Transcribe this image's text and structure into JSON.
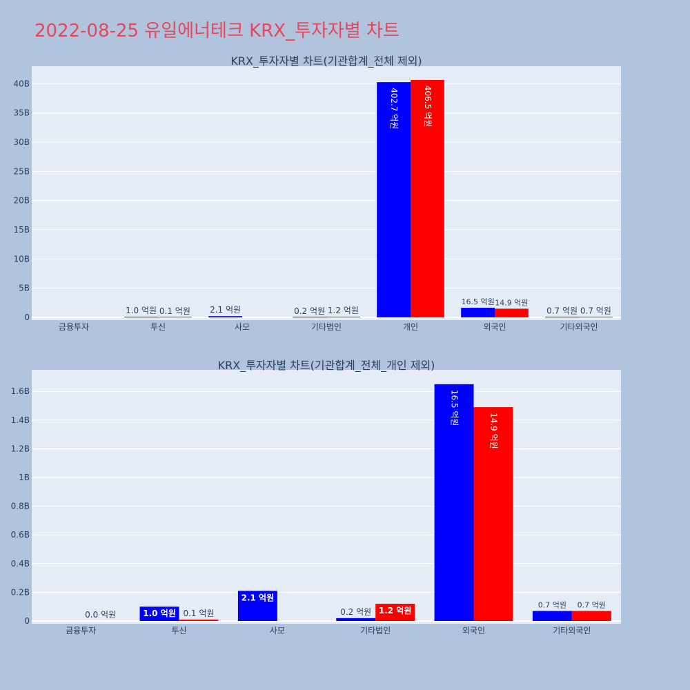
{
  "page": {
    "title": "2022-08-25 유일에너테크 KRX_투자자별 차트"
  },
  "colors": {
    "background": "#b0c4de",
    "plot_background": "#e5ecf6",
    "title": "#e8475b",
    "series_buy": "#0000ff",
    "series_sell": "#ff0000"
  },
  "chart_data": [
    {
      "type": "bar",
      "title": "KRX_투자자별 차트(기관합계_전체 제외)",
      "categories": [
        "금융투자",
        "투신",
        "사모",
        "기타법인",
        "개인",
        "외국인",
        "기타외국인"
      ],
      "y_ticks": [
        {
          "value": 0,
          "label": "0"
        },
        {
          "value": 5000000000,
          "label": "5B"
        },
        {
          "value": 10000000000,
          "label": "10B"
        },
        {
          "value": 15000000000,
          "label": "15B"
        },
        {
          "value": 20000000000,
          "label": "20B"
        },
        {
          "value": 25000000000,
          "label": "25B"
        },
        {
          "value": 30000000000,
          "label": "30B"
        },
        {
          "value": 35000000000,
          "label": "35B"
        },
        {
          "value": 40000000000,
          "label": "40B"
        }
      ],
      "ylim": [
        0,
        43000000000
      ],
      "grid": true,
      "series": [
        {
          "color": "#0000ff",
          "values": [
            null,
            100000000,
            210000000,
            20000000,
            40270000000,
            1650000000,
            70000000
          ],
          "labels": [
            "",
            "1.0 억원",
            "2.1 억원",
            "0.2 억원",
            "402.7 억원",
            "16.5 억원",
            "0.7 억원"
          ]
        },
        {
          "color": "#ff0000",
          "values": [
            null,
            10000000,
            null,
            120000000,
            40650000000,
            1490000000,
            70000000
          ],
          "labels": [
            "",
            "0.1 억원",
            "",
            "1.2 억원",
            "406.5 억원",
            "14.9 억원",
            "0.7 억원"
          ]
        }
      ]
    },
    {
      "type": "bar",
      "title": "KRX_투자자별 차트(기관합계_전체_개인 제외)",
      "categories": [
        "금융투자",
        "투신",
        "사모",
        "기타법인",
        "외국인",
        "기타외국인"
      ],
      "y_ticks": [
        {
          "value": 0,
          "label": "0"
        },
        {
          "value": 200000000,
          "label": "0.2B"
        },
        {
          "value": 400000000,
          "label": "0.4B"
        },
        {
          "value": 600000000,
          "label": "0.6B"
        },
        {
          "value": 800000000,
          "label": "0.8B"
        },
        {
          "value": 1000000000,
          "label": "1B"
        },
        {
          "value": 1200000000,
          "label": "1.2B"
        },
        {
          "value": 1400000000,
          "label": "1.4B"
        },
        {
          "value": 1600000000,
          "label": "1.6B"
        }
      ],
      "ylim": [
        0,
        1750000000
      ],
      "grid": true,
      "series": [
        {
          "color": "#0000ff",
          "values": [
            null,
            100000000,
            210000000,
            20000000,
            1650000000,
            70000000
          ],
          "labels": [
            "",
            "1.0 억원",
            "2.1 억원",
            "0.2 억원",
            "16.5 억원",
            "0.7 억원"
          ]
        },
        {
          "color": "#ff0000",
          "values": [
            0,
            10000000,
            null,
            120000000,
            1490000000,
            70000000
          ],
          "labels": [
            "0.0 억원",
            "0.1 억원",
            "",
            "1.2 억원",
            "14.9 억원",
            "0.7 억원"
          ]
        }
      ]
    }
  ]
}
